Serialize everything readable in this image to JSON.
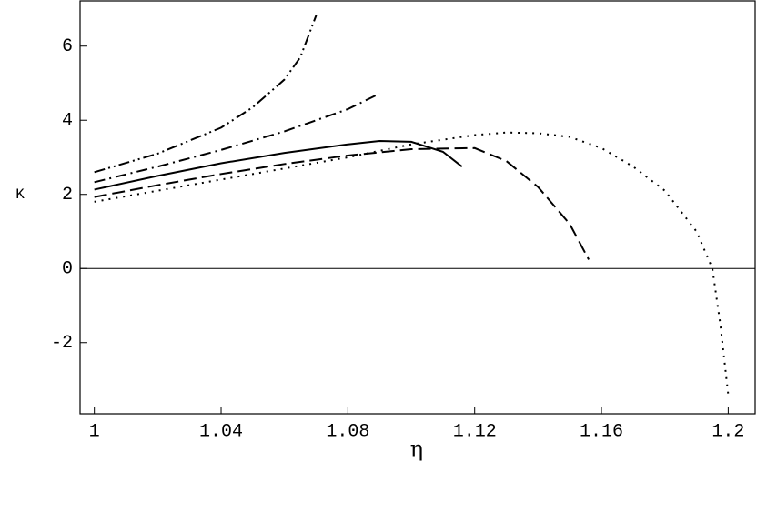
{
  "chart_data": {
    "type": "line",
    "xlabel": "η",
    "ylabel": "K",
    "xlim": [
      0.9955,
      1.2085
    ],
    "ylim": [
      -3.92,
      7.22
    ],
    "xticks": [
      1,
      1.04,
      1.08,
      1.12,
      1.16,
      1.2
    ],
    "yticks": [
      -2,
      0,
      2,
      4,
      6
    ],
    "zero_line": true,
    "series": [
      {
        "color": "#000000",
        "dash": "none",
        "x": [
          1,
          1.02,
          1.04,
          1.06,
          1.08,
          1.09,
          1.1,
          1.11,
          1.116
        ],
        "values": [
          2.13,
          2.5,
          2.84,
          3.12,
          3.35,
          3.44,
          3.42,
          3.15,
          2.75
        ]
      },
      {
        "color": "#000000",
        "dash": "14 6",
        "x": [
          1,
          1.02,
          1.04,
          1.06,
          1.08,
          1.1,
          1.12,
          1.13,
          1.14,
          1.15,
          1.156
        ],
        "values": [
          1.93,
          2.25,
          2.55,
          2.82,
          3.05,
          3.22,
          3.25,
          2.9,
          2.2,
          1.2,
          0.24
        ]
      },
      {
        "color": "#000000",
        "dash": "2 6",
        "x": [
          1,
          1.04,
          1.08,
          1.1,
          1.12,
          1.13,
          1.14,
          1.15,
          1.16,
          1.17,
          1.18,
          1.19,
          1.195,
          1.1975,
          1.2
        ],
        "values": [
          1.8,
          2.4,
          3.0,
          3.35,
          3.6,
          3.67,
          3.65,
          3.55,
          3.25,
          2.75,
          2.1,
          1.0,
          0,
          -1.5,
          -3.4
        ]
      },
      {
        "color": "#000000",
        "dash": "12 5 2 5",
        "x": [
          1,
          1.02,
          1.04,
          1.06,
          1.08,
          1.09
        ],
        "values": [
          2.33,
          2.75,
          3.2,
          3.7,
          4.3,
          4.72
        ]
      },
      {
        "color": "#000000",
        "dash": "12 4 2 4 2 4",
        "x": [
          1,
          1.02,
          1.04,
          1.05,
          1.06,
          1.065,
          1.07
        ],
        "values": [
          2.6,
          3.1,
          3.8,
          4.35,
          5.1,
          5.7,
          6.83
        ]
      }
    ]
  }
}
